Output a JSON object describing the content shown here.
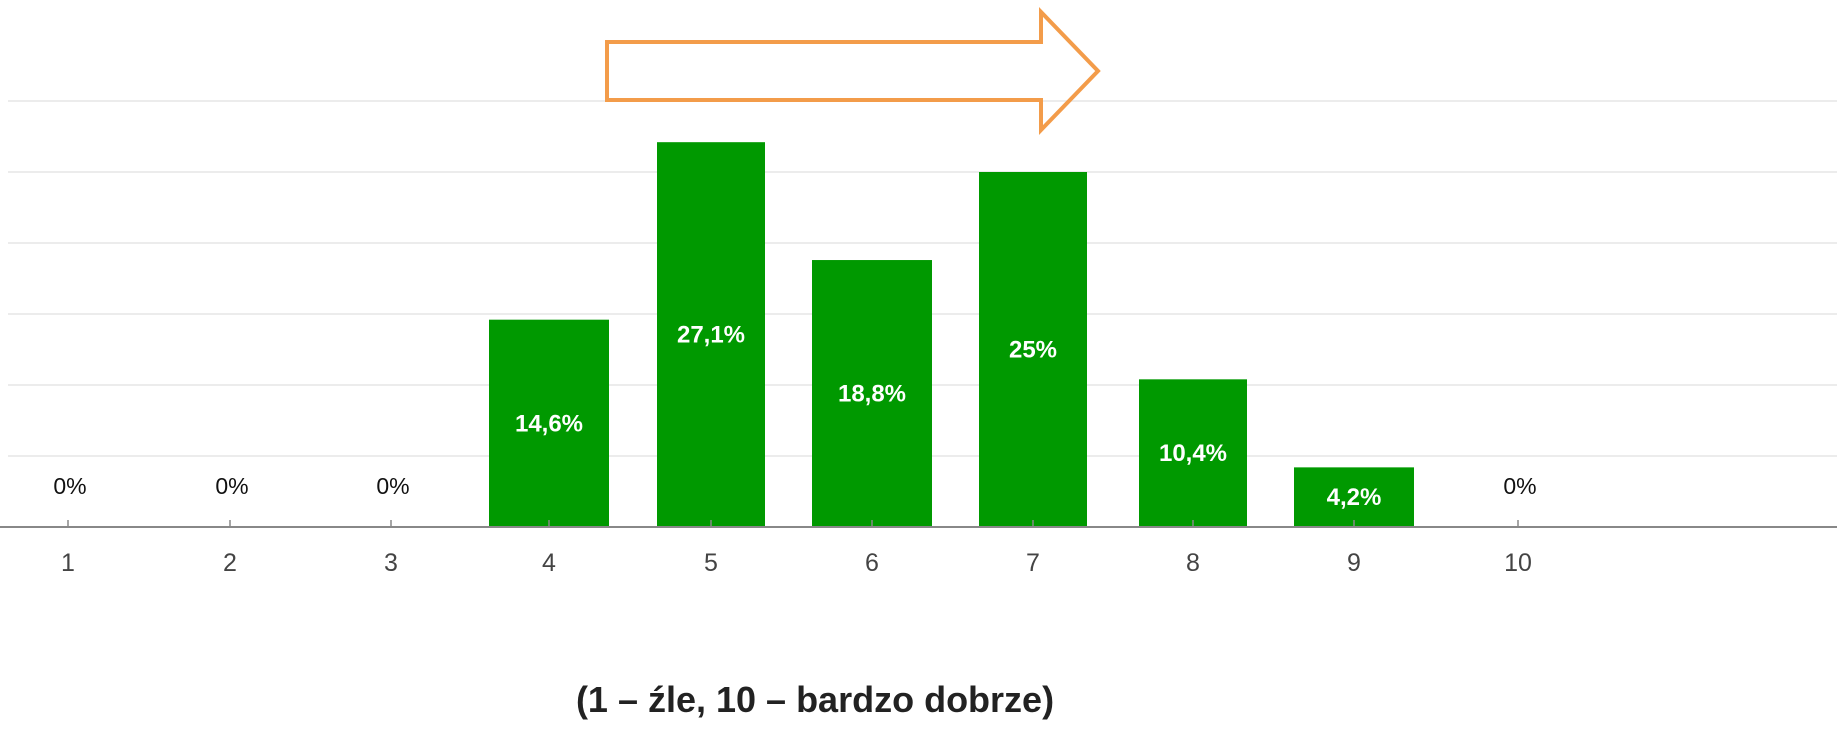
{
  "chart_data": {
    "type": "bar",
    "categories": [
      "1",
      "2",
      "3",
      "4",
      "5",
      "6",
      "7",
      "8",
      "9",
      "10"
    ],
    "values": [
      0,
      0,
      0,
      14.6,
      27.1,
      18.8,
      25,
      10.4,
      4.2,
      0
    ],
    "data_labels": [
      "0%",
      "0%",
      "0%",
      "14,6%",
      "27,1%",
      "18,8%",
      "25%",
      "10,4%",
      "4,2%",
      "0%"
    ],
    "title": "",
    "xlabel": "(1 – źle, 10 – bardzo dobrze)",
    "ylabel": "",
    "ylim": [
      0,
      30
    ],
    "grid": true,
    "legend": "none",
    "annotation": "arrow-right-icon",
    "colors": {
      "bar": "#009900",
      "arrow": "#f39c4a",
      "grid": "#ececec",
      "axis": "#888888"
    }
  }
}
